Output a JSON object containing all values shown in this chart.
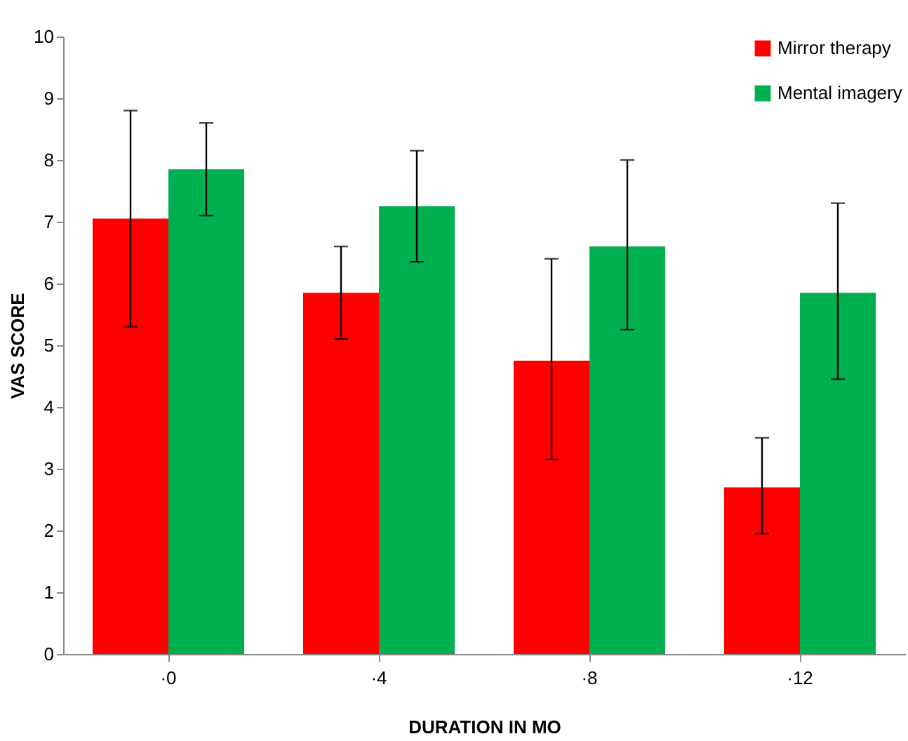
{
  "chart_data": {
    "type": "bar",
    "xlabel": "DURATION IN MO",
    "ylabel": "VAS SCORE",
    "categories": [
      "·0",
      "·4",
      "·8",
      "·12"
    ],
    "series": [
      {
        "name": "Mirror therapy",
        "color": "#ff0000",
        "values": [
          7.05,
          5.85,
          4.75,
          2.7
        ],
        "errors": [
          [
            5.3,
            8.8
          ],
          [
            5.1,
            6.6
          ],
          [
            3.15,
            6.4
          ],
          [
            1.95,
            3.5
          ]
        ]
      },
      {
        "name": "Mental imagery",
        "color": "#00b050",
        "values": [
          7.85,
          7.25,
          6.6,
          5.85
        ],
        "errors": [
          [
            7.1,
            8.6
          ],
          [
            6.35,
            8.15
          ],
          [
            5.25,
            8.0
          ],
          [
            4.45,
            7.3
          ]
        ]
      }
    ],
    "ylim": [
      0,
      10
    ],
    "yticks": [
      0,
      1,
      2,
      3,
      4,
      5,
      6,
      7,
      8,
      9,
      10
    ],
    "legend": "top right"
  }
}
